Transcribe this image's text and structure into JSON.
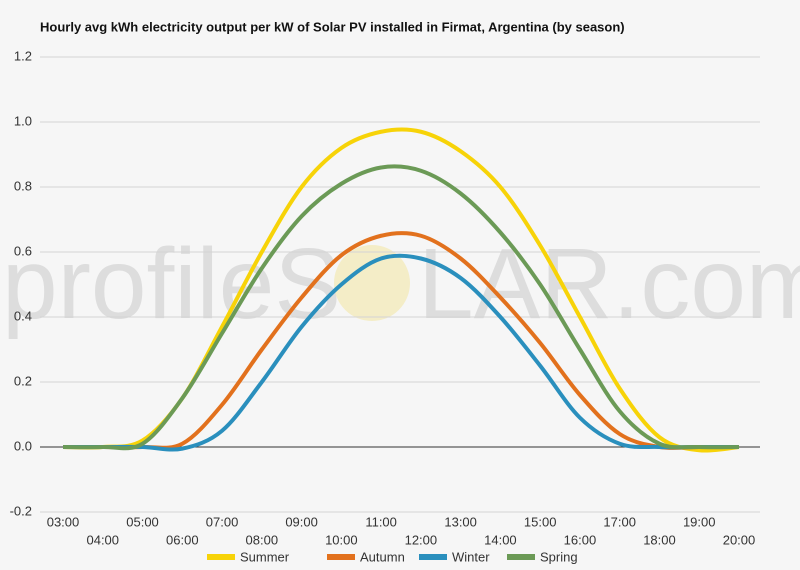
{
  "chart_data": {
    "type": "line",
    "title": "Hourly avg kWh electricity output per kW of Solar PV installed in Firmat, Argentina (by season)",
    "watermark": [
      "profileS",
      "LAR.com"
    ],
    "categories": [
      "03:00",
      "04:00",
      "05:00",
      "06:00",
      "07:00",
      "08:00",
      "09:00",
      "10:00",
      "11:00",
      "12:00",
      "13:00",
      "14:00",
      "15:00",
      "16:00",
      "17:00",
      "18:00",
      "19:00",
      "20:00"
    ],
    "series": [
      {
        "name": "Summer",
        "color": "#f7d308",
        "values": [
          0,
          0,
          0.02,
          0.15,
          0.37,
          0.6,
          0.8,
          0.92,
          0.97,
          0.97,
          0.91,
          0.8,
          0.62,
          0.4,
          0.18,
          0.03,
          -0.01,
          0
        ]
      },
      {
        "name": "Autumn",
        "color": "#e2711d",
        "values": [
          0,
          0,
          0,
          0.01,
          0.13,
          0.3,
          0.46,
          0.59,
          0.65,
          0.65,
          0.58,
          0.46,
          0.32,
          0.16,
          0.04,
          0,
          0,
          0
        ]
      },
      {
        "name": "Winter",
        "color": "#2a8fbd",
        "values": [
          0,
          0,
          0,
          -0.005,
          0.05,
          0.2,
          0.37,
          0.5,
          0.58,
          0.58,
          0.52,
          0.4,
          0.25,
          0.09,
          0.01,
          0,
          0,
          0
        ]
      },
      {
        "name": "Spring",
        "color": "#6b9a56",
        "values": [
          0,
          0,
          0.01,
          0.15,
          0.35,
          0.55,
          0.71,
          0.81,
          0.86,
          0.85,
          0.78,
          0.66,
          0.5,
          0.3,
          0.11,
          0.01,
          0,
          0
        ]
      }
    ],
    "ylim": [
      -0.2,
      1.2
    ],
    "yticks": [
      {
        "value": -0.2,
        "label": "-0.2"
      },
      {
        "value": 0,
        "label": "0.0"
      },
      {
        "value": 0.2,
        "label": "0.2"
      },
      {
        "value": 0.4,
        "label": "0.4"
      },
      {
        "value": 0.6,
        "label": "0.6"
      },
      {
        "value": 0.8,
        "label": "0.8"
      },
      {
        "value": 1,
        "label": "1.0"
      },
      {
        "value": 1.2,
        "label": "1.2"
      }
    ],
    "grid": true
  }
}
